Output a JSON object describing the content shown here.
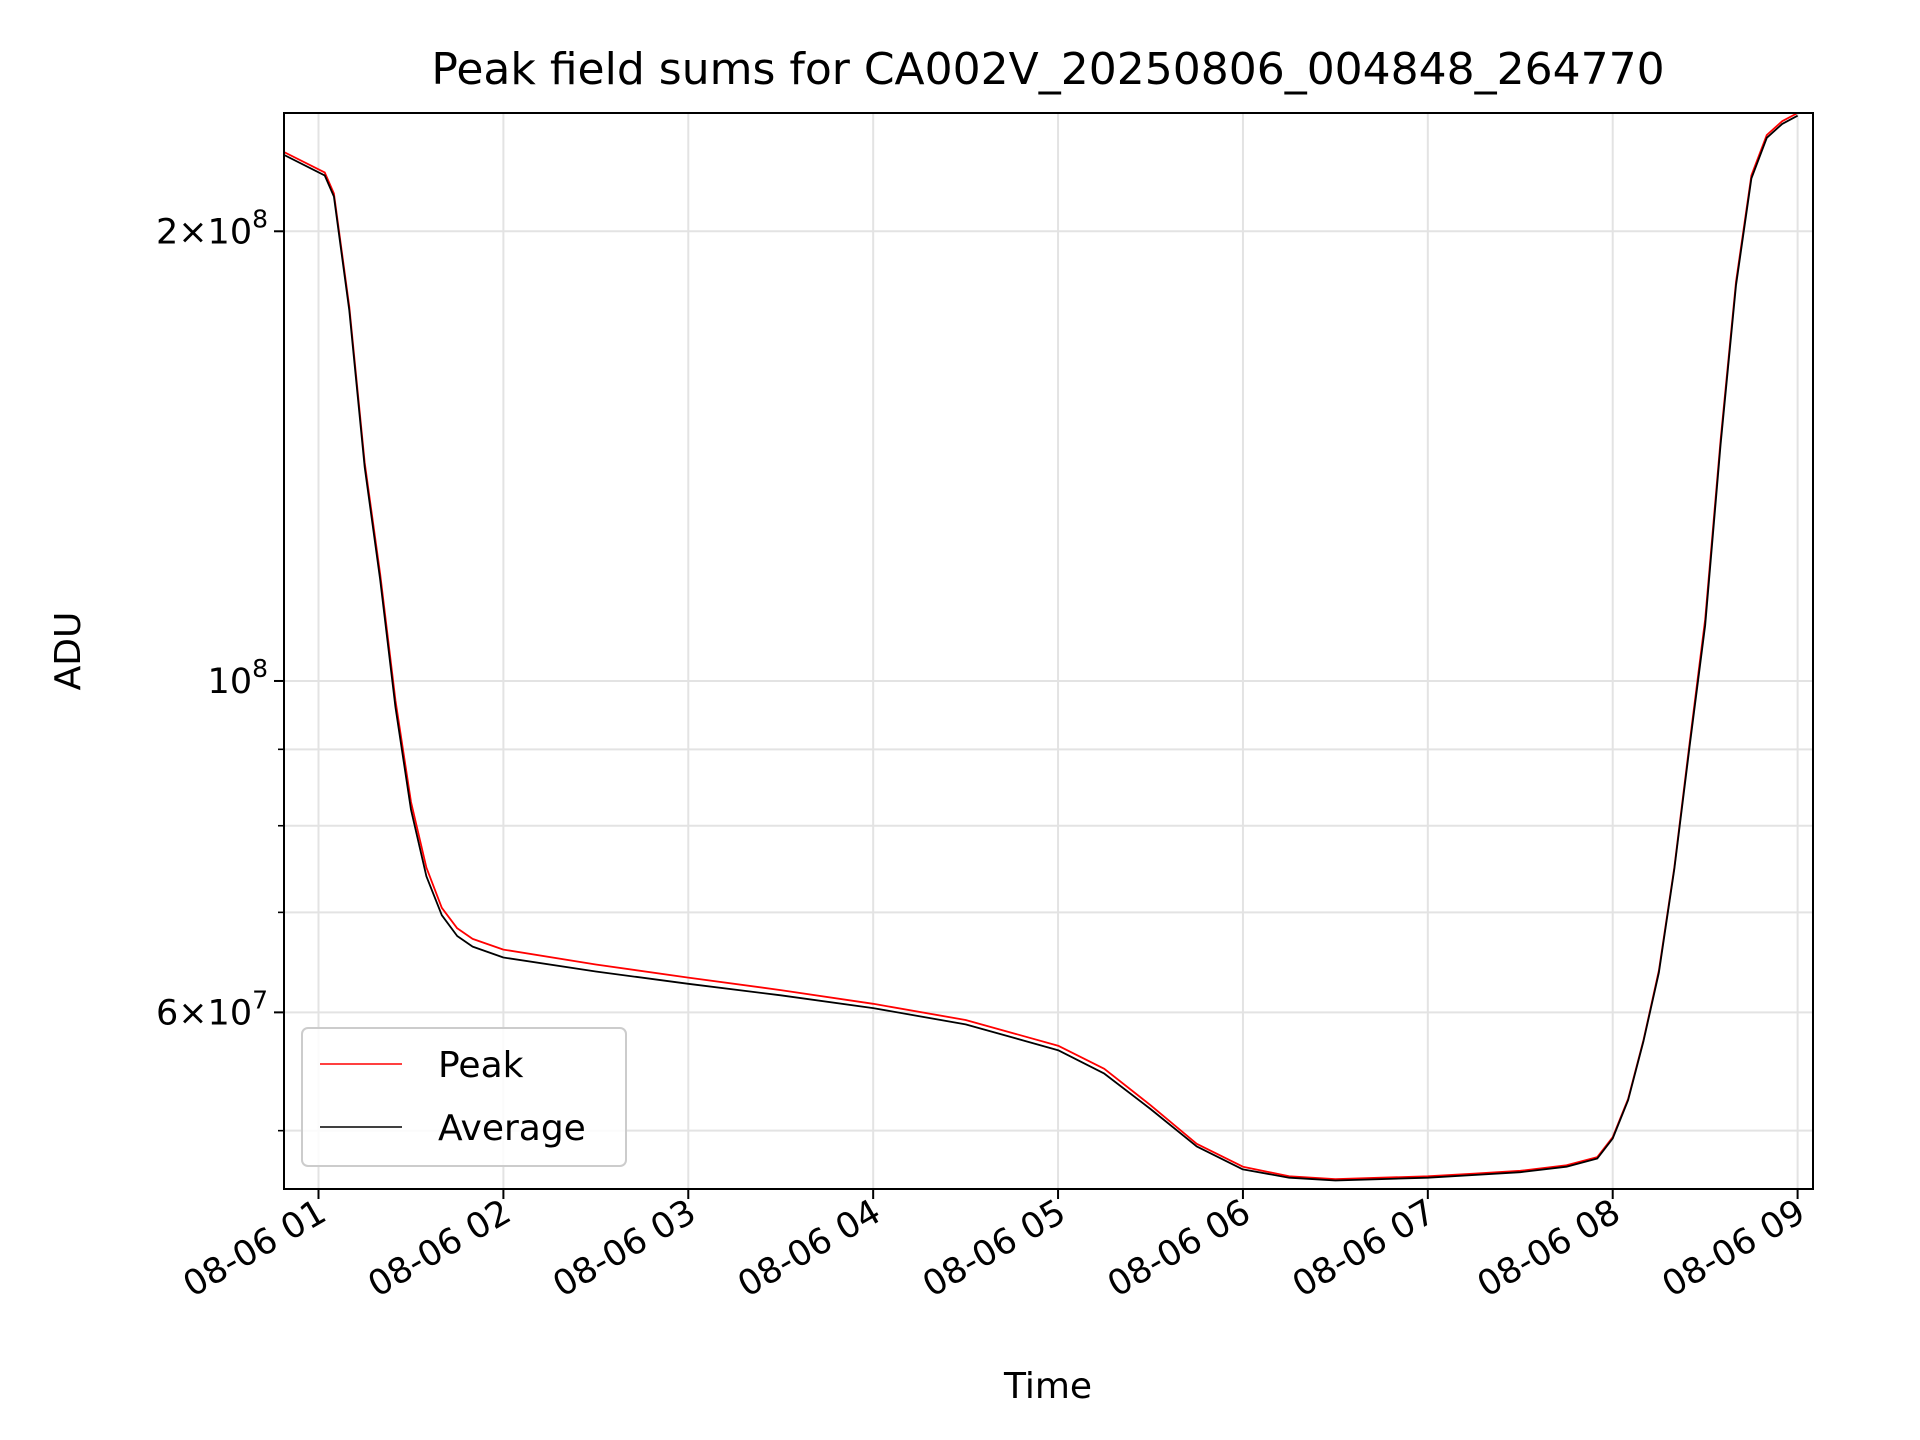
{
  "chart_data": {
    "type": "line",
    "title": "Peak field sums for CA002V_20250806_004848_264770",
    "xlabel": "Time",
    "ylabel": "ADU",
    "xlim": [
      "08-06 00:48:48",
      "08-06 09:05"
    ],
    "ylim": [
      45700000,
      240000000
    ],
    "y_scale": "log",
    "grid": true,
    "legend_position": "lower-left",
    "x_ticks": [
      "08-06 01",
      "08-06 02",
      "08-06 03",
      "08-06 04",
      "08-06 05",
      "08-06 06",
      "08-06 07",
      "08-06 08",
      "08-06 09"
    ],
    "y_major_ticks": [
      {
        "value": 100000000,
        "base": "10",
        "exp": "8",
        "mantissa": ""
      },
      {
        "value": 200000000,
        "base": "10",
        "exp": "8",
        "mantissa": "2"
      },
      {
        "value": 60000000,
        "base": "10",
        "exp": "7",
        "mantissa": "6"
      }
    ],
    "y_minor_ticks": [
      50000000,
      70000000,
      80000000,
      90000000
    ],
    "series": [
      {
        "name": "Peak",
        "color": "#ff0000",
        "x": [
          "08-06 00:48:48",
          "08-06 01:02",
          "08-06 01:05",
          "08-06 01:10",
          "08-06 01:15",
          "08-06 01:20",
          "08-06 01:25",
          "08-06 01:30",
          "08-06 01:35",
          "08-06 01:40",
          "08-06 01:45",
          "08-06 01:50",
          "08-06 02:00",
          "08-06 02:30",
          "08-06 03:00",
          "08-06 03:30",
          "08-06 04:00",
          "08-06 04:30",
          "08-06 05:00",
          "08-06 05:15",
          "08-06 05:30",
          "08-06 05:45",
          "08-06 06:00",
          "08-06 06:15",
          "08-06 06:30",
          "08-06 06:45",
          "08-06 07:00",
          "08-06 07:15",
          "08-06 07:30",
          "08-06 07:45",
          "08-06 07:55",
          "08-06 08:00",
          "08-06 08:05",
          "08-06 08:10",
          "08-06 08:15",
          "08-06 08:20",
          "08-06 08:25",
          "08-06 08:30",
          "08-06 08:35",
          "08-06 08:40",
          "08-06 08:45",
          "08-06 08:50",
          "08-06 08:55",
          "08-06 09:00"
        ],
        "values": [
          226000000,
          219000000,
          212000000,
          178000000,
          140000000,
          118000000,
          97000000,
          83000000,
          75000000,
          70500000,
          68300000,
          67200000,
          66100000,
          64600000,
          63300000,
          62100000,
          60800000,
          59300000,
          57000000,
          55000000,
          52000000,
          49000000,
          47300000,
          46600000,
          46400000,
          46500000,
          46600000,
          46800000,
          47000000,
          47400000,
          48000000,
          49500000,
          52500000,
          57500000,
          64000000,
          75000000,
          91000000,
          110000000,
          145000000,
          185000000,
          218000000,
          232000000,
          237000000,
          240000000
        ]
      },
      {
        "name": "Average",
        "color": "#000000",
        "x": [
          "08-06 00:48:48",
          "08-06 01:02",
          "08-06 01:05",
          "08-06 01:10",
          "08-06 01:15",
          "08-06 01:20",
          "08-06 01:25",
          "08-06 01:30",
          "08-06 01:35",
          "08-06 01:40",
          "08-06 01:45",
          "08-06 01:50",
          "08-06 02:00",
          "08-06 02:30",
          "08-06 03:00",
          "08-06 03:30",
          "08-06 04:00",
          "08-06 04:30",
          "08-06 05:00",
          "08-06 05:15",
          "08-06 05:30",
          "08-06 05:45",
          "08-06 06:00",
          "08-06 06:15",
          "08-06 06:30",
          "08-06 06:45",
          "08-06 07:00",
          "08-06 07:15",
          "08-06 07:30",
          "08-06 07:45",
          "08-06 07:55",
          "08-06 08:00",
          "08-06 08:05",
          "08-06 08:10",
          "08-06 08:15",
          "08-06 08:20",
          "08-06 08:25",
          "08-06 08:30",
          "08-06 08:35",
          "08-06 08:40",
          "08-06 08:45",
          "08-06 08:50",
          "08-06 08:55",
          "08-06 09:00"
        ],
        "values": [
          225000000,
          218000000,
          211000000,
          177000000,
          139000000,
          117000000,
          96000000,
          82000000,
          74000000,
          69700000,
          67500000,
          66400000,
          65300000,
          63900000,
          62700000,
          61600000,
          60400000,
          58900000,
          56600000,
          54600000,
          51700000,
          48800000,
          47100000,
          46500000,
          46300000,
          46400000,
          46500000,
          46700000,
          46900000,
          47300000,
          47900000,
          49400000,
          52400000,
          57400000,
          63800000,
          74800000,
          90500000,
          109000000,
          144000000,
          184000000,
          217000000,
          231000000,
          236000000,
          239000000
        ]
      }
    ]
  }
}
